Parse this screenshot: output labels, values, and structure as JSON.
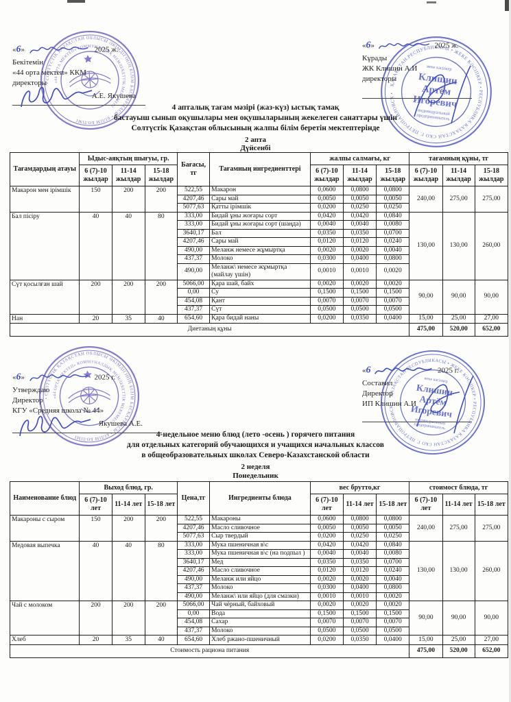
{
  "signs": {
    "top_left": {
      "quote_open": "«",
      "day": "6",
      "quote_close": "»",
      "year": "2025 ж.",
      "lines": [
        "Бекітемін",
        "«44 орта мектеп» ККМ",
        "директоры"
      ],
      "name": "А.Е. Якушева"
    },
    "top_right": {
      "quote_open": "«",
      "day": "6",
      "quote_close": "»",
      "year": "2025 ж.",
      "lines": [
        "Кұрады",
        "ЖК Клишин А.И",
        "директоры"
      ]
    },
    "mid_left": {
      "quote_open": "«",
      "day": "6",
      "quote_close": "»",
      "year": "2025 г.",
      "lines": [
        "Утверждаю",
        "Директор",
        "КГУ «Средняя школа № 44»"
      ],
      "name": "Якушева А.Е."
    },
    "mid_right": {
      "quote_open": "«",
      "day": "6",
      "quote_close": "»",
      "year": "2025 г.",
      "lines": [
        "Составил",
        "Директор",
        "ИП Клишин А.И"
      ]
    }
  },
  "stamps": {
    "school": {
      "ring_outer": "• СОЛТҮСТІК ҚАЗАҚСТАН ОБЛЫСЫ ӘКІМДІГІНІҢ БІЛІМ БАСҚАРМАСЫ • БІЛІМ БӨЛІМІ",
      "ring_inner": "«44 ОРТА МЕКТЕП» КОММУНАЛДЫҚ МЕМЛЕКЕТТІК МЕКЕМЕСІ"
    },
    "ip": {
      "ring": "ҚАЗАҚСТАН РЕСПУБЛИКАСЫ • ЖЕКЕ КӘСІПКЕР • РЕСПУБЛИКА КАЗАХСТАН СКО Г. ПЕТРОПАВЛОВСК •",
      "top_label": "жеке кәсіпкер",
      "name_lines": [
        "Клишин",
        "Артём",
        "Игоревич"
      ],
      "sub_lines": [
        "индивидуальный",
        "предприниматель"
      ]
    }
  },
  "kk": {
    "title_lines": [
      "4 апталық тағам мәзірі (жаз-күз) ыстық тамақ",
      "бастауыш сынып оқушылары мен оқушыларының жекелеген санаттары үшін",
      "Солтүстік Қазақстан облысының жалпы білім беретін мектептерінде"
    ],
    "week": "2 апта",
    "day": "Дүйсенбі",
    "table": {
      "header": {
        "name": "Тағамдардың атауы",
        "out": "Ыдыс-аяқтың шығуы, гр.",
        "price": "Бағасы, тг",
        "ingredients": "Тағамның ингредиенттері",
        "weight": "жалпы салмағы, кг",
        "cost": "тағамның құны, тг",
        "ages": [
          "6 (7)-10 жылдар",
          "11-14 жылдар",
          "15-18 жылдар"
        ]
      },
      "groups": [
        {
          "name": "Макарон мен ірімшік",
          "portions": [
            "150",
            "200",
            "200"
          ],
          "items": [
            {
              "price": "522,55",
              "name": "Макарон",
              "w": [
                "0,0600",
                "0,0800",
                "0,0800"
              ]
            },
            {
              "price": "4207,46",
              "name": "Сары май",
              "w": [
                "0,0050",
                "0,0050",
                "0,0050"
              ]
            },
            {
              "price": "5077,63",
              "name": "Қатты ірімшік",
              "w": [
                "0,0200",
                "0,0250",
                "0,0250"
              ]
            }
          ],
          "costs": [
            "240,00",
            "275,00",
            "275,00"
          ]
        },
        {
          "name": "Бал пісіру",
          "portions": [
            "40",
            "40",
            "80"
          ],
          "items": [
            {
              "price": "333,00",
              "name": "Бидай ұны жоғары сорт",
              "w": [
                "0,0420",
                "0,0420",
                "0,0840"
              ]
            },
            {
              "price": "333,00",
              "name": "Бидай ұны жоғары сорт (шаңда)",
              "w": [
                "0,0040",
                "0,0040",
                "0,0080"
              ]
            },
            {
              "price": "3640,17",
              "name": "Бал",
              "w": [
                "0,0350",
                "0,0350",
                "0,0700"
              ]
            },
            {
              "price": "4207,46",
              "name": "Сары май",
              "w": [
                "0,0120",
                "0,0120",
                "0,0240"
              ]
            },
            {
              "price": "490,00",
              "name": "Меланж немесе жұмыртқа",
              "w": [
                "0,0020",
                "0,0020",
                "0,0040"
              ]
            },
            {
              "price": "437,37",
              "name": "Молоко",
              "w": [
                "0,0300",
                "0,0400",
                "0,0800"
              ]
            },
            {
              "price": "490,00",
              "name": "Меланж\\ немесе жұмыртқа (майлау үшін)",
              "w": [
                "0,0010",
                "0,0010",
                "0,0020"
              ]
            }
          ],
          "costs": [
            "130,00",
            "130,00",
            "260,00"
          ]
        },
        {
          "name": "Сүт қосылған шай",
          "portions": [
            "200",
            "200",
            "200"
          ],
          "items": [
            {
              "price": "5066,00",
              "name": "Қара шай, байх",
              "w": [
                "0,0020",
                "0,0020",
                "0,0020"
              ]
            },
            {
              "price": "0,00",
              "name": "Су",
              "w": [
                "0,1500",
                "0,1500",
                "0,1500"
              ]
            },
            {
              "price": "454,08",
              "name": "Қант",
              "w": [
                "0,0070",
                "0,0070",
                "0,0070"
              ]
            },
            {
              "price": "437,37",
              "name": "Сүт",
              "w": [
                "0,0500",
                "0,0500",
                "0,0500"
              ]
            }
          ],
          "costs": [
            "90,00",
            "90,00",
            "90,00"
          ]
        },
        {
          "name": "Нан",
          "portions": [
            "20",
            "35",
            "40"
          ],
          "items": [
            {
              "price": "654,60",
              "name": "Қара бидай наны",
              "w": [
                "0,0200",
                "0,0350",
                "0,0400"
              ]
            }
          ],
          "costs": [
            "15,00",
            "25,00",
            "27,00"
          ]
        }
      ],
      "footer": {
        "label": "Диетаның құны",
        "totals": [
          "475,00",
          "520,00",
          "652,00"
        ]
      }
    }
  },
  "ru": {
    "title_lines": [
      "4-недельное меню блюд (лето -осень ) горячего питания",
      "для отдельных категорий обучающихся и учащихся начальных классов",
      "в общеобразовательных школах Северо-Казахстанской области"
    ],
    "week": "2 неделя",
    "day": "Понедельник",
    "table": {
      "header": {
        "name": "Наименование блюд",
        "out": "Выход блюд, гр.",
        "price": "Цена,тг",
        "ingredients": "Ингредиенты блюда",
        "weight": "вес брутто,кг",
        "cost": "стоимост блюда, тг",
        "ages": [
          "6 (7)-10 лет",
          "11-14 лет",
          "15-18 лет"
        ]
      },
      "groups": [
        {
          "name": "Макароны с сыром",
          "portions": [
            "150",
            "200",
            "200"
          ],
          "items": [
            {
              "price": "522,55",
              "name": "Макароны",
              "w": [
                "0,0600",
                "0,0800",
                "0,0800"
              ]
            },
            {
              "price": "4207,46",
              "name": "Масло сливочное",
              "w": [
                "0,0050",
                "0,0050",
                "0,0050"
              ]
            },
            {
              "price": "5077,63",
              "name": "Сыр твердый",
              "w": [
                "0,0200",
                "0,0250",
                "0,0250"
              ]
            }
          ],
          "costs": [
            "240,00",
            "275,00",
            "275,00"
          ]
        },
        {
          "name": "Медовая выпечка",
          "portions": [
            "40",
            "40",
            "80"
          ],
          "items": [
            {
              "price": "333,00",
              "name": "Мука пшеничная в\\с",
              "w": [
                "0,0420",
                "0,0420",
                "0,0840"
              ]
            },
            {
              "price": "333,00",
              "name": "Мука пшеничная в\\с (на подпыл )",
              "w": [
                "0,0040",
                "0,0040",
                "0,0080"
              ]
            },
            {
              "price": "3640,17",
              "name": "Мед",
              "w": [
                "0,0350",
                "0,0350",
                "0,0700"
              ]
            },
            {
              "price": "4207,46",
              "name": "Масло сливочное",
              "w": [
                "0,0120",
                "0,0120",
                "0,0240"
              ]
            },
            {
              "price": "490,00",
              "name": "Меланж или яйцо",
              "w": [
                "0,0020",
                "0,0020",
                "0,0040"
              ]
            },
            {
              "price": "437,37",
              "name": "Молоко",
              "w": [
                "0,0300",
                "0,0400",
                "0,0800"
              ]
            },
            {
              "price": "490,00",
              "name": "Меланж\\ или яйцо  (для смазки)",
              "w": [
                "0,0010",
                "0,0010",
                "0,0020"
              ]
            }
          ],
          "costs": [
            "130,00",
            "130,00",
            "260,00"
          ]
        },
        {
          "name": "Чай с молоком",
          "portions": [
            "200",
            "200",
            "200"
          ],
          "items": [
            {
              "price": "5066,00",
              "name": "Чай чёрный, байховый",
              "w": [
                "0,0020",
                "0,0020",
                "0,0020"
              ]
            },
            {
              "price": "0,00",
              "name": "Вода",
              "w": [
                "0,1500",
                "0,1500",
                "0,1500"
              ]
            },
            {
              "price": "454,08",
              "name": "Сахар",
              "w": [
                "0,0070",
                "0,0070",
                "0,0070"
              ]
            },
            {
              "price": "437,37",
              "name": "Молоко",
              "w": [
                "0,0500",
                "0,0500",
                "0,0500"
              ]
            }
          ],
          "costs": [
            "90,00",
            "90,00",
            "90,00"
          ]
        },
        {
          "name": "Хлеб",
          "portions": [
            "20",
            "35",
            "40"
          ],
          "items": [
            {
              "price": "654,60",
              "name": "Хлеб ржано-пшеничный",
              "w": [
                "0,0200",
                "0,0350",
                "0,0400"
              ]
            }
          ],
          "costs": [
            "15,00",
            "25,00",
            "27,00"
          ]
        }
      ],
      "footer": {
        "label": "Стоимость рациона питания",
        "totals": [
          "475,00",
          "520,00",
          "652,00"
        ]
      }
    }
  }
}
